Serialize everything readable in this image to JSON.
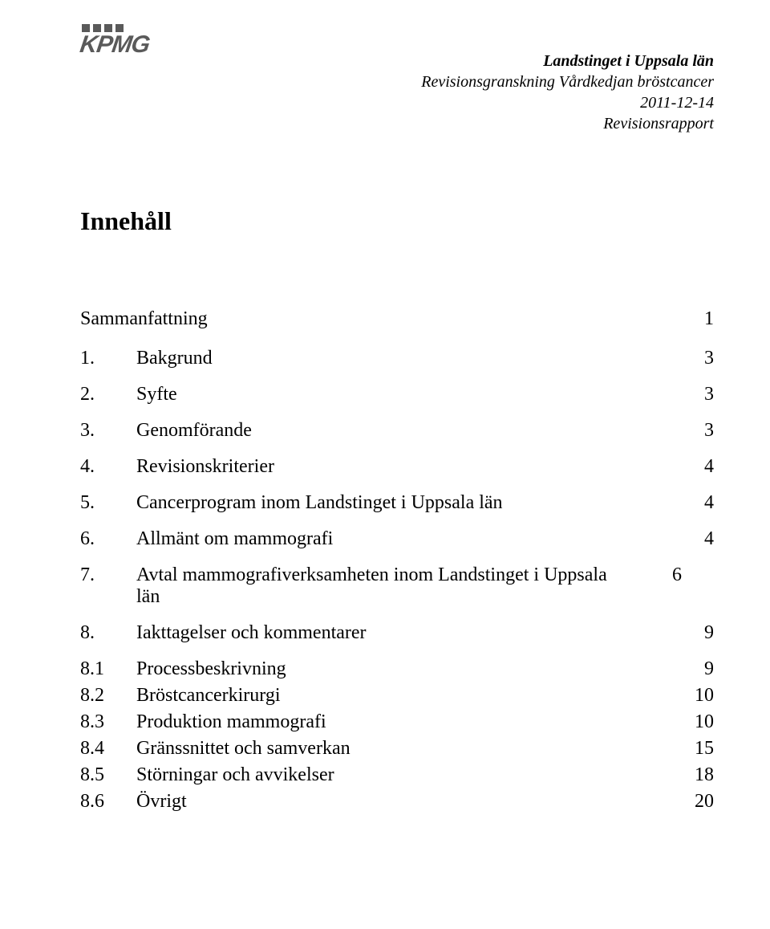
{
  "header": {
    "line1": "Landstinget i Uppsala län",
    "line2": "Revisionsgranskning Vårdkedjan bröstcancer",
    "line3": "2011-12-14",
    "line4": "Revisionsrapport"
  },
  "logo_text": "KPMG",
  "logo_color": "#5a5a5a",
  "title": "Innehåll",
  "toc": [
    {
      "num": "",
      "label": "Sammanfattning",
      "page": "1",
      "no_num": true,
      "top": true
    },
    {
      "num": "1.",
      "label": "Bakgrund",
      "page": "3"
    },
    {
      "num": "2.",
      "label": "Syfte",
      "page": "3"
    },
    {
      "num": "3.",
      "label": "Genomförande",
      "page": "3"
    },
    {
      "num": "4.",
      "label": "Revisionskriterier",
      "page": "4"
    },
    {
      "num": "5.",
      "label": "Cancerprogram inom Landstinget i Uppsala län",
      "page": "4"
    },
    {
      "num": "6.",
      "label": "Allmänt om mammografi",
      "page": "4"
    },
    {
      "num": "7.",
      "label": "Avtal mammografiverksamheten inom Landstinget i Uppsala län",
      "page": "6",
      "multiline": true
    },
    {
      "num": "8.",
      "label": "Iakttagelser och kommentarer",
      "page": "9"
    },
    {
      "num": "8.1",
      "label": "Processbeskrivning",
      "page": "9",
      "sub": true
    },
    {
      "num": "8.2",
      "label": "Bröstcancerkirurgi",
      "page": "10",
      "sub": true
    },
    {
      "num": "8.3",
      "label": "Produktion mammografi",
      "page": "10",
      "sub": true
    },
    {
      "num": "8.4",
      "label": "Gränssnittet och samverkan",
      "page": "15",
      "sub": true
    },
    {
      "num": "8.5",
      "label": "Störningar och avvikelser",
      "page": "18",
      "sub": true
    },
    {
      "num": "8.6",
      "label": "Övrigt",
      "page": "20",
      "sub": true
    }
  ]
}
